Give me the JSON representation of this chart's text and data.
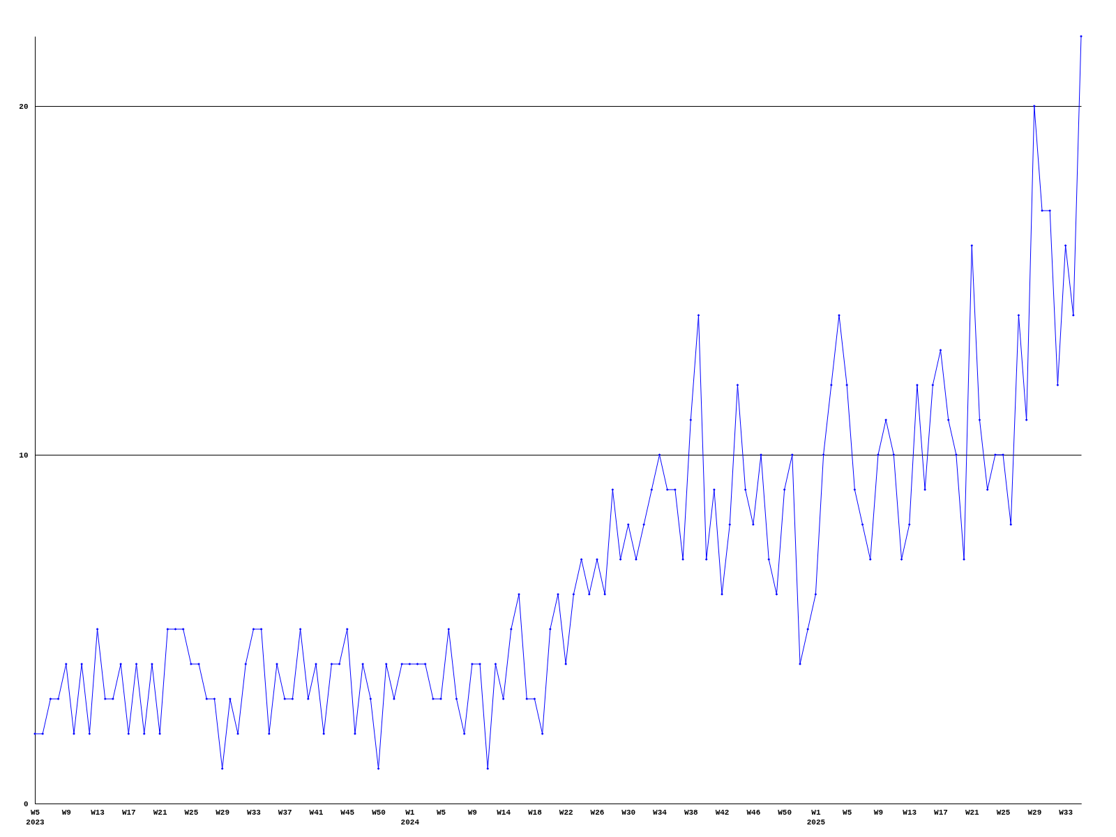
{
  "chart_data": {
    "type": "line",
    "categories": [
      "W5\n2023",
      null,
      null,
      null,
      "W9",
      null,
      null,
      null,
      "W13",
      null,
      null,
      null,
      "W17",
      null,
      null,
      null,
      "W21",
      null,
      null,
      null,
      "W25",
      null,
      null,
      null,
      "W29",
      null,
      null,
      null,
      "W33",
      null,
      null,
      null,
      "W37",
      null,
      null,
      null,
      "W41",
      null,
      null,
      null,
      "W45",
      null,
      null,
      null,
      "W50",
      null,
      null,
      null,
      "W1\n2024",
      null,
      null,
      null,
      "W5",
      null,
      null,
      null,
      "W9",
      null,
      null,
      null,
      "W14",
      null,
      null,
      null,
      "W18",
      null,
      null,
      null,
      "W22",
      null,
      null,
      null,
      "W26",
      null,
      null,
      null,
      "W30",
      null,
      null,
      null,
      "W34",
      null,
      null,
      null,
      "W38",
      null,
      null,
      null,
      "W42",
      null,
      null,
      null,
      "W46",
      null,
      null,
      null,
      "W50",
      null,
      null,
      null,
      "W1\n2025",
      null,
      null,
      null,
      "W5",
      null,
      null,
      null,
      "W9",
      null,
      null,
      null,
      "W13",
      null,
      null,
      null,
      "W17",
      null,
      null,
      null,
      "W21",
      null,
      null,
      null,
      "W25",
      null,
      null,
      null,
      "W29",
      null,
      null,
      null,
      "W33",
      null,
      null
    ],
    "series": [
      {
        "color": "#0000ff",
        "values": [
          2,
          2,
          3,
          3,
          4,
          2,
          4,
          2,
          5,
          3,
          3,
          4,
          2,
          4,
          2,
          4,
          2,
          5,
          5,
          5,
          4,
          4,
          3,
          3,
          1,
          3,
          2,
          4,
          5,
          5,
          2,
          4,
          3,
          3,
          5,
          3,
          4,
          2,
          4,
          4,
          5,
          2,
          4,
          3,
          1,
          4,
          3,
          4,
          4,
          4,
          4,
          3,
          3,
          5,
          3,
          2,
          4,
          4,
          1,
          4,
          3,
          5,
          6,
          3,
          3,
          2,
          5,
          6,
          4,
          6,
          7,
          6,
          7,
          6,
          9,
          7,
          8,
          7,
          8,
          9,
          10,
          9,
          9,
          7,
          11,
          14,
          7,
          9,
          6,
          8,
          12,
          9,
          8,
          10,
          7,
          6,
          9,
          10,
          4,
          5,
          6,
          10,
          12,
          14,
          12,
          9,
          8,
          7,
          10,
          11,
          10,
          7,
          8,
          12,
          9,
          12,
          13,
          11,
          10,
          7,
          16,
          11,
          9,
          10,
          10,
          8,
          14,
          11,
          20,
          17,
          17,
          12,
          16,
          14,
          22
        ]
      }
    ],
    "ylim": [
      0,
      22
    ],
    "yticks": [
      0,
      10,
      20
    ],
    "grid": "y",
    "marker": "diamond",
    "line_style": "solid"
  }
}
